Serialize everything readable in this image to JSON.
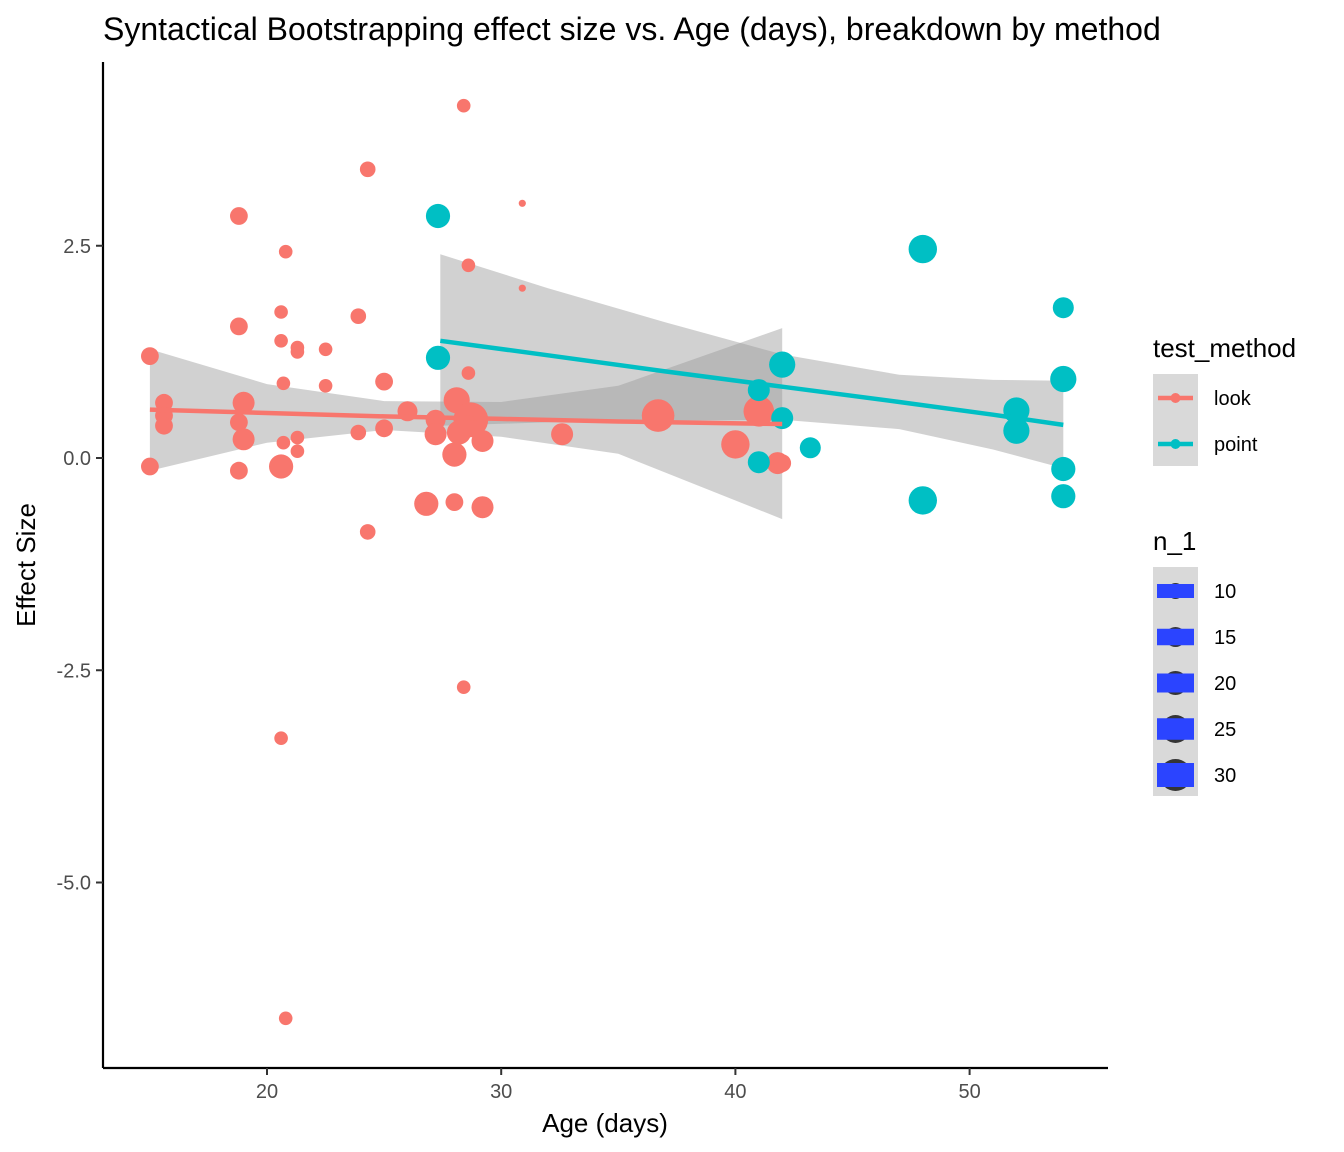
{
  "chart_data": {
    "type": "scatter",
    "title": "Syntactical Bootstrapping effect size vs. Age (days), breakdown by method",
    "xlabel": "Age (days)",
    "ylabel": "Effect Size",
    "xlim": [
      13,
      56
    ],
    "ylim": [
      -7.2,
      4.6
    ],
    "xticks": [
      20,
      30,
      40,
      50
    ],
    "yticks": [
      2.5,
      0.0,
      -2.5,
      -5.0
    ],
    "ytick_labels": [
      "2.5",
      "0.0",
      "-2.5",
      "-5.0"
    ],
    "grid": false,
    "legend_position": "right",
    "colors": {
      "look": "#f8766d",
      "point": "#00bfc4",
      "ribbon": "#999999",
      "size_key": "#2b44ff",
      "legend_key_bg": "#d9d9d9"
    },
    "color_legend": {
      "title": "test_method",
      "entries": [
        "look",
        "point"
      ]
    },
    "size_legend": {
      "title": "n_1",
      "entries": [
        "10",
        "15",
        "20",
        "25",
        "30"
      ]
    },
    "series": [
      {
        "name": "look",
        "color": "#f8766d",
        "points": [
          {
            "x": 15.0,
            "y": 1.2,
            "n": 14
          },
          {
            "x": 15.0,
            "y": -0.1,
            "n": 14
          },
          {
            "x": 15.6,
            "y": 0.65,
            "n": 14
          },
          {
            "x": 15.6,
            "y": 0.5,
            "n": 14
          },
          {
            "x": 15.6,
            "y": 0.38,
            "n": 14
          },
          {
            "x": 18.8,
            "y": 2.85,
            "n": 14
          },
          {
            "x": 18.8,
            "y": 1.55,
            "n": 14
          },
          {
            "x": 18.8,
            "y": 0.42,
            "n": 14
          },
          {
            "x": 18.8,
            "y": -0.15,
            "n": 14
          },
          {
            "x": 19.0,
            "y": 0.65,
            "n": 18
          },
          {
            "x": 19.0,
            "y": 0.22,
            "n": 18
          },
          {
            "x": 20.6,
            "y": 1.72,
            "n": 10
          },
          {
            "x": 20.6,
            "y": 1.38,
            "n": 10
          },
          {
            "x": 20.6,
            "y": -3.3,
            "n": 10
          },
          {
            "x": 20.6,
            "y": -0.1,
            "n": 20
          },
          {
            "x": 20.8,
            "y": 2.43,
            "n": 10
          },
          {
            "x": 20.7,
            "y": 0.88,
            "n": 10
          },
          {
            "x": 20.7,
            "y": 0.18,
            "n": 10
          },
          {
            "x": 20.8,
            "y": -6.6,
            "n": 10
          },
          {
            "x": 21.3,
            "y": 1.3,
            "n": 10
          },
          {
            "x": 21.3,
            "y": 1.25,
            "n": 10
          },
          {
            "x": 21.3,
            "y": 0.24,
            "n": 10
          },
          {
            "x": 21.3,
            "y": 0.08,
            "n": 10
          },
          {
            "x": 22.5,
            "y": 1.28,
            "n": 10
          },
          {
            "x": 22.5,
            "y": 0.85,
            "n": 10
          },
          {
            "x": 23.9,
            "y": 1.67,
            "n": 12
          },
          {
            "x": 23.9,
            "y": 0.3,
            "n": 12
          },
          {
            "x": 24.3,
            "y": 3.4,
            "n": 12
          },
          {
            "x": 24.3,
            "y": -0.87,
            "n": 12
          },
          {
            "x": 25.0,
            "y": 0.9,
            "n": 14
          },
          {
            "x": 25.0,
            "y": 0.35,
            "n": 14
          },
          {
            "x": 26.0,
            "y": 0.55,
            "n": 16
          },
          {
            "x": 26.8,
            "y": -0.54,
            "n": 20
          },
          {
            "x": 27.2,
            "y": 0.45,
            "n": 16
          },
          {
            "x": 27.2,
            "y": 0.28,
            "n": 18
          },
          {
            "x": 28.0,
            "y": 0.04,
            "n": 20
          },
          {
            "x": 28.0,
            "y": -0.52,
            "n": 14
          },
          {
            "x": 28.1,
            "y": 0.68,
            "n": 22
          },
          {
            "x": 28.2,
            "y": 0.3,
            "n": 20
          },
          {
            "x": 28.4,
            "y": 4.15,
            "n": 10
          },
          {
            "x": 28.4,
            "y": -2.7,
            "n": 10
          },
          {
            "x": 28.6,
            "y": 2.27,
            "n": 10
          },
          {
            "x": 28.6,
            "y": 1.0,
            "n": 10
          },
          {
            "x": 28.7,
            "y": 0.45,
            "n": 30
          },
          {
            "x": 29.2,
            "y": 0.2,
            "n": 18
          },
          {
            "x": 29.2,
            "y": -0.58,
            "n": 18
          },
          {
            "x": 30.9,
            "y": 3.0,
            "n": 4
          },
          {
            "x": 30.9,
            "y": 2.0,
            "n": 4
          },
          {
            "x": 32.6,
            "y": 0.28,
            "n": 18
          },
          {
            "x": 36.7,
            "y": 0.5,
            "n": 28
          },
          {
            "x": 40.0,
            "y": 0.16,
            "n": 24
          },
          {
            "x": 41.0,
            "y": 0.55,
            "n": 26
          },
          {
            "x": 41.8,
            "y": -0.06,
            "n": 18
          },
          {
            "x": 42.0,
            "y": -0.06,
            "n": 14
          }
        ]
      },
      {
        "name": "point",
        "color": "#00bfc4",
        "points": [
          {
            "x": 27.3,
            "y": 2.85,
            "n": 20
          },
          {
            "x": 27.3,
            "y": 1.18,
            "n": 20
          },
          {
            "x": 41.0,
            "y": 0.8,
            "n": 18
          },
          {
            "x": 41.0,
            "y": -0.05,
            "n": 18
          },
          {
            "x": 42.0,
            "y": 1.1,
            "n": 22
          },
          {
            "x": 42.0,
            "y": 0.47,
            "n": 18
          },
          {
            "x": 43.2,
            "y": 0.12,
            "n": 17
          },
          {
            "x": 48.0,
            "y": 2.46,
            "n": 24
          },
          {
            "x": 48.0,
            "y": -0.5,
            "n": 24
          },
          {
            "x": 52.0,
            "y": 0.56,
            "n": 22
          },
          {
            "x": 52.0,
            "y": 0.32,
            "n": 22
          },
          {
            "x": 54.0,
            "y": 1.77,
            "n": 17
          },
          {
            "x": 54.0,
            "y": 0.93,
            "n": 22
          },
          {
            "x": 54.0,
            "y": -0.13,
            "n": 20
          },
          {
            "x": 54.0,
            "y": -0.45,
            "n": 20
          }
        ]
      }
    ],
    "fits": [
      {
        "name": "look",
        "color": "#f8766d",
        "x": [
          15.0,
          20.0,
          25.0,
          30.0,
          35.0,
          42.0
        ],
        "y": [
          0.57,
          0.53,
          0.49,
          0.46,
          0.43,
          0.4
        ],
        "lower": [
          -0.15,
          0.18,
          0.33,
          0.25,
          0.05,
          -0.72
        ],
        "upper": [
          1.28,
          0.87,
          0.67,
          0.66,
          0.85,
          1.53
        ]
      },
      {
        "name": "point",
        "color": "#00bfc4",
        "x": [
          27.4,
          32.0,
          37.0,
          42.0,
          47.0,
          51.0,
          54.0
        ],
        "y": [
          1.38,
          1.21,
          1.02,
          0.84,
          0.66,
          0.51,
          0.39
        ],
        "lower": [
          0.38,
          0.42,
          0.44,
          0.45,
          0.34,
          0.1,
          -0.12
        ],
        "upper": [
          2.4,
          2.0,
          1.6,
          1.22,
          0.98,
          0.92,
          0.91
        ]
      }
    ]
  }
}
